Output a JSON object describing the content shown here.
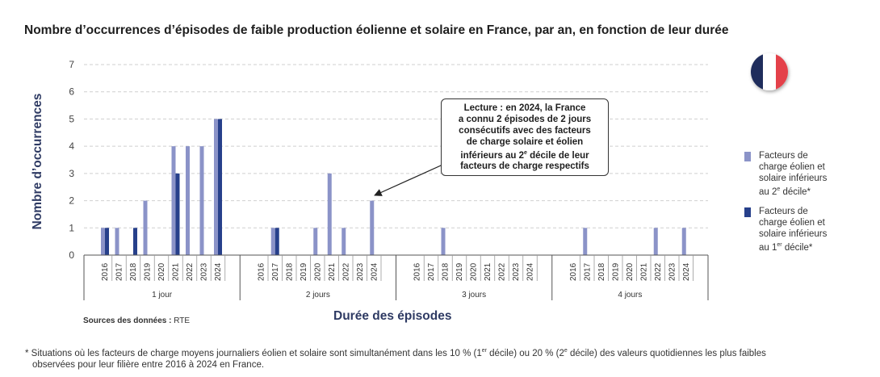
{
  "title": "Nombre d’occurrences d’épisodes de faible production éolienne et solaire en France, par an, en fonction de leur durée",
  "chart_data": {
    "type": "bar",
    "ylabel": "Nombre d’occurrences",
    "xlabel": "Durée des épisodes",
    "ylim": [
      0,
      7
    ],
    "yticks": [
      "0",
      "1",
      "2",
      "3",
      "4",
      "5",
      "6",
      "7"
    ],
    "grid": true,
    "groups": [
      "1 jour",
      "2 jours",
      "3 jours",
      "4 jours"
    ],
    "years": [
      "2016",
      "2017",
      "2018",
      "2019",
      "2020",
      "2021",
      "2022",
      "2023",
      "2024"
    ],
    "series": [
      {
        "name": "Facteurs de charge éolien et solaire inférieurs au 2e décile*",
        "color": "#8b93c8",
        "values": [
          [
            1,
            1,
            0,
            2,
            0,
            4,
            4,
            4,
            5
          ],
          [
            0,
            1,
            0,
            0,
            1,
            3,
            1,
            0,
            2
          ],
          [
            0,
            0,
            1,
            0,
            0,
            0,
            0,
            0,
            0
          ],
          [
            0,
            1,
            0,
            0,
            0,
            0,
            1,
            0,
            1
          ]
        ]
      },
      {
        "name": "Facteurs de charge éolien et solaire inférieurs au 1er décile*",
        "color": "#27408b",
        "values": [
          [
            1,
            0,
            1,
            0,
            0,
            3,
            0,
            0,
            5
          ],
          [
            0,
            1,
            0,
            0,
            0,
            0,
            0,
            0,
            0
          ],
          [
            0,
            0,
            0,
            0,
            0,
            0,
            0,
            0,
            0
          ],
          [
            0,
            0,
            0,
            0,
            0,
            0,
            0,
            0,
            0
          ]
        ]
      }
    ],
    "annotation": {
      "line1": "Lecture : en 2024, la France",
      "line2": "a connu 2 épisodes de 2 jours",
      "line3": "consécutifs avec des facteurs",
      "line4": "de charge solaire et éolien",
      "line5_pre": "inférieurs au 2",
      "line5_sup": "e",
      "line5_post": " décile de leur",
      "line6": "facteurs de charge respectifs"
    }
  },
  "legend": {
    "item1": {
      "line1": "Facteurs de",
      "line2": "charge éolien et",
      "line3": "solaire inférieurs",
      "line4_pre": "au 2",
      "line4_sup": "e",
      "line4_post": " décile*"
    },
    "item2": {
      "line1": "Facteurs de",
      "line2": "charge éolien et",
      "line3": "solaire inférieurs",
      "line4_pre": "au 1",
      "line4_sup": "er",
      "line4_post": " décile*"
    }
  },
  "flag_colors": [
    "#1f2d5c",
    "#ffffff",
    "#e4414a"
  ],
  "source_label": "Sources des données :",
  "source_value": " RTE",
  "footnote": {
    "p1": "* Situations où les facteurs de charge moyens journaliers éolien et solaire sont simultanément dans les 10 % (1",
    "s1": "er",
    "p2": " décile) ou 20 % (2",
    "s2": "e",
    "p3": " décile) des valeurs quotidiennes les plus faibles",
    "p4": "observées pour leur filière entre 2016 à 2024 en France."
  }
}
